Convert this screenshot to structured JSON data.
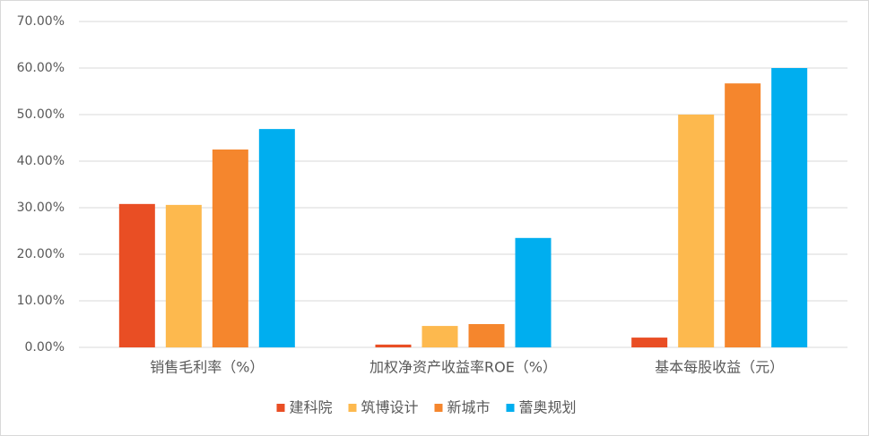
{
  "chart_data": {
    "type": "bar",
    "categories": [
      "销售毛利率（%）",
      "加权净资产收益率ROE（%）",
      "基本每股收益（元）"
    ],
    "series": [
      {
        "name": "建科院",
        "color": "#e94e24",
        "values": [
          30.8,
          0.6,
          2.1
        ]
      },
      {
        "name": "筑博设计",
        "color": "#fdb94e",
        "values": [
          30.6,
          4.6,
          50.0
        ]
      },
      {
        "name": "新城市",
        "color": "#f5862d",
        "values": [
          42.5,
          5.0,
          56.7
        ]
      },
      {
        "name": "蕾奥规划",
        "color": "#00aeef",
        "values": [
          46.9,
          23.5,
          60.0
        ]
      }
    ],
    "ylim": [
      0,
      70
    ],
    "yticks": [
      {
        "value": 0,
        "label": "0.00%"
      },
      {
        "value": 10,
        "label": "10.00%"
      },
      {
        "value": 20,
        "label": "20.00%"
      },
      {
        "value": 30,
        "label": "30.00%"
      },
      {
        "value": 40,
        "label": "40.00%"
      },
      {
        "value": 50,
        "label": "50.00%"
      },
      {
        "value": 60,
        "label": "60.00%"
      },
      {
        "value": 70,
        "label": "70.00%"
      }
    ],
    "grid": true,
    "legend": "bottom"
  }
}
